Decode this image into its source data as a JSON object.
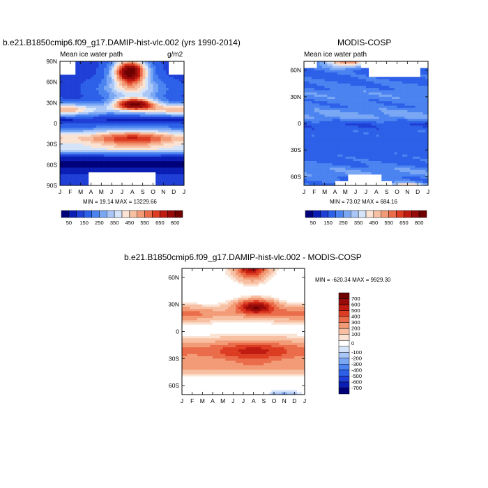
{
  "chart_data": [
    {
      "type": "heatmap",
      "title": "b.e21.B1850cmip6.f09_g17.DAMIP-hist-vlc.002 (yrs 1990-2014)",
      "subtitle_left": "Mean ice water path",
      "units": "g/m2",
      "x_ticks": [
        "J",
        "F",
        "M",
        "A",
        "M",
        "J",
        "J",
        "A",
        "S",
        "O",
        "N",
        "D",
        "J"
      ],
      "y_ticks": [
        "90N",
        "60N",
        "30N",
        "0",
        "30S",
        "60S",
        "90S"
      ],
      "ylim": [
        -90,
        90
      ],
      "min_max": "MIN = 19.14   MAX = 13229.66",
      "colorbar_labels": [
        "50",
        "150",
        "250",
        "350",
        "450",
        "550",
        "650",
        "800"
      ]
    },
    {
      "type": "heatmap",
      "title": "MODIS-COSP",
      "subtitle_left": "Mean ice water path",
      "x_ticks": [
        "J",
        "F",
        "M",
        "A",
        "M",
        "J",
        "J",
        "A",
        "S",
        "O",
        "N",
        "D",
        "J"
      ],
      "y_ticks": [
        "60N",
        "30N",
        "0",
        "30S",
        "60S"
      ],
      "ylim": [
        -70,
        70
      ],
      "min_max": "MIN = 73.02   MAX = 684.16",
      "colorbar_labels": [
        "50",
        "150",
        "250",
        "350",
        "450",
        "550",
        "650",
        "800"
      ]
    },
    {
      "type": "heatmap",
      "title": "b.e21.B1850cmip6.f09_g17.DAMIP-hist-vlc.002 - MODIS-COSP",
      "x_ticks": [
        "J",
        "F",
        "M",
        "A",
        "M",
        "J",
        "J",
        "A",
        "S",
        "O",
        "N",
        "D",
        "J"
      ],
      "y_ticks": [
        "60N",
        "30N",
        "0",
        "30S",
        "60S"
      ],
      "ylim": [
        -70,
        70
      ],
      "min_max": "MIN = -620.34   MAX = 9929.30",
      "colorbar_labels": [
        "700",
        "600",
        "500",
        "400",
        "300",
        "200",
        "100",
        "0",
        "-100",
        "-200",
        "-300",
        "-400",
        "-500",
        "-600",
        "-700"
      ]
    }
  ],
  "palettes": {
    "sequential": [
      "#00007a",
      "#0a1eb4",
      "#1f3fd6",
      "#2d60e8",
      "#4b83f0",
      "#7aa7f4",
      "#a9c6f7",
      "#d6e4fa",
      "#fbe3d4",
      "#f7c0a3",
      "#f29b76",
      "#ea6c4a",
      "#dc3d22",
      "#bf1a10",
      "#960a0a",
      "#6e0000"
    ],
    "diverging": [
      "#6e0000",
      "#960a0a",
      "#bf1a10",
      "#dc3d22",
      "#ea6c4a",
      "#f29b76",
      "#f7c0a3",
      "#fbe3d4",
      "#ffffff",
      "#d6e4fa",
      "#a9c6f7",
      "#7aa7f4",
      "#4b83f0",
      "#2d60e8",
      "#1f3fd6",
      "#0a1eb4",
      "#00007a"
    ]
  }
}
